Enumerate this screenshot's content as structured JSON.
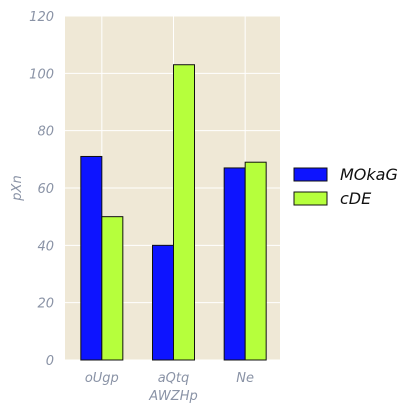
{
  "chart_data": {
    "type": "bar",
    "title": "",
    "xlabel": "",
    "ylabel": "pXn",
    "ylim": [
      0,
      120
    ],
    "yticks": [
      0,
      20,
      40,
      60,
      80,
      100,
      120
    ],
    "categories": [
      "oUgp",
      "aQtq\nAWZHp",
      "Ne"
    ],
    "series": [
      {
        "name": "MOkaG",
        "values": [
          71,
          40,
          67
        ],
        "color": "#0d14ff"
      },
      {
        "name": "cDE",
        "values": [
          50,
          103,
          69
        ],
        "color": "#b6ff3c"
      }
    ],
    "grid": true,
    "legend_position": "right",
    "background": "#efe8d6"
  }
}
